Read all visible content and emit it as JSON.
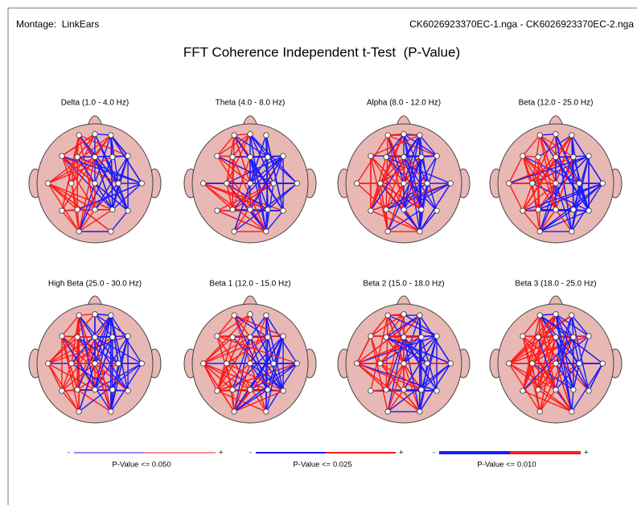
{
  "header": {
    "montage": "Montage:  LinkEars",
    "files": "CK6026923370EC-1.nga - CK6026923370EC-2.nga"
  },
  "title": "FFT Coherence Independent t-Test  (P-Value)",
  "maps": [
    {
      "label": "Delta (1.0 - 4.0 Hz)"
    },
    {
      "label": "Theta (4.0 - 8.0 Hz)"
    },
    {
      "label": "Alpha (8.0 - 12.0 Hz)"
    },
    {
      "label": "Beta (12.0 - 25.0 Hz)"
    },
    {
      "label": "High Beta (25.0 - 30.0 Hz)"
    },
    {
      "label": "Beta 1 (12.0 - 15.0 Hz)"
    },
    {
      "label": "Beta 2 (15.0 - 18.0 Hz)"
    },
    {
      "label": "Beta 3 (18.0 - 25.0 Hz)"
    }
  ],
  "legends": [
    {
      "minus": "-",
      "plus": "+",
      "label": "P-Value <= 0.050"
    },
    {
      "minus": "-",
      "plus": "+",
      "label": "P-Value <= 0.025"
    },
    {
      "minus": "-",
      "plus": "+",
      "label": "P-Value <= 0.010"
    }
  ]
}
